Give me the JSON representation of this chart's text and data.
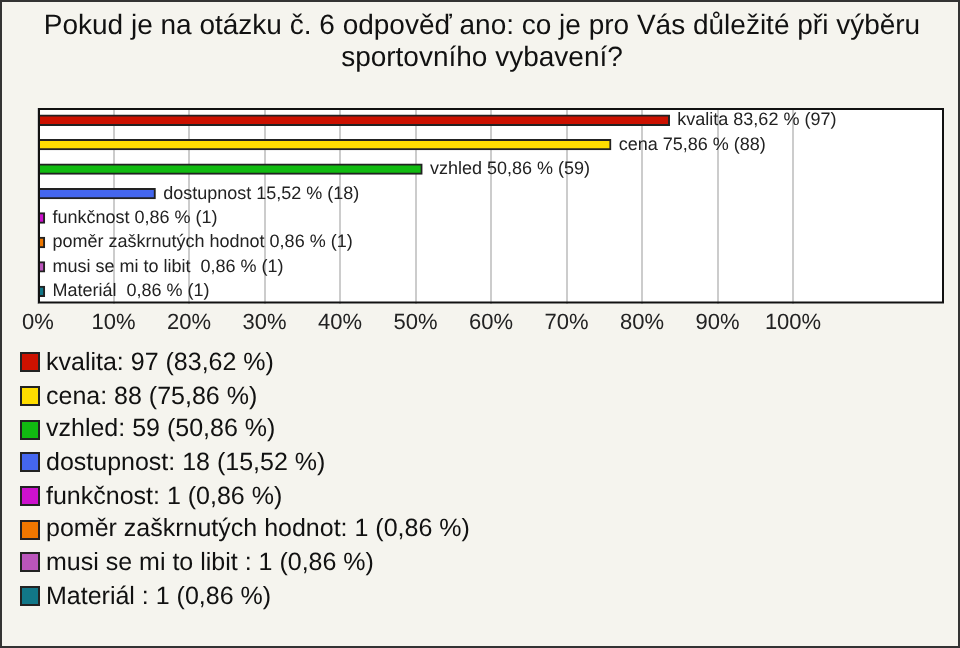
{
  "chart_data": {
    "type": "bar",
    "orientation": "horizontal",
    "title": "Pokud je na otázku č. 6 odpověď ano: co je pro Vás důležité při výběru sportovního vybavení?",
    "categories": [
      null,
      null,
      null,
      null,
      null,
      null,
      null,
      null
    ],
    "series": [
      {
        "name": "kvalita: 97 (83,62 %)",
        "color": "#cc1100",
        "values": [
          83.62,
          null,
          null,
          null,
          null,
          null,
          null,
          null
        ],
        "value_labels": [
          "kvalita 83,62 % (97)",
          null,
          null,
          null,
          null,
          null,
          null,
          null
        ]
      },
      {
        "name": "cena: 88 (75,86 %)",
        "color": "#ffdd00",
        "values": [
          null,
          75.86,
          null,
          null,
          null,
          null,
          null,
          null
        ],
        "value_labels": [
          null,
          "cena 75,86 % (88)",
          null,
          null,
          null,
          null,
          null,
          null
        ]
      },
      {
        "name": "vzhled: 59 (50,86 %)",
        "color": "#11bb11",
        "values": [
          null,
          null,
          50.86,
          null,
          null,
          null,
          null,
          null
        ],
        "value_labels": [
          null,
          null,
          "vzhled 50,86 % (59)",
          null,
          null,
          null,
          null,
          null
        ]
      },
      {
        "name": "dostupnost: 18 (15,52 %)",
        "color": "#4466ee",
        "values": [
          null,
          null,
          null,
          15.52,
          null,
          null,
          null,
          null
        ],
        "value_labels": [
          null,
          null,
          null,
          "dostupnost 15,52 % (18)",
          null,
          null,
          null,
          null
        ]
      },
      {
        "name": "funkčnost: 1 (0,86 %)",
        "color": "#cc11cc",
        "values": [
          null,
          null,
          null,
          null,
          0.86,
          null,
          null,
          null
        ],
        "value_labels": [
          null,
          null,
          null,
          null,
          "funkčnost 0,86 % (1)",
          null,
          null,
          null
        ]
      },
      {
        "name": "poměr zaškrnutých hodnot: 1 (0,86 %)",
        "color": "#ee7700",
        "values": [
          null,
          null,
          null,
          null,
          null,
          0.86,
          null,
          null
        ],
        "value_labels": [
          null,
          null,
          null,
          null,
          null,
          "poměr zaškrnutých hodnot 0,86 % (1)",
          null,
          null
        ]
      },
      {
        "name": "musi se mi to libit : 1 (0,86 %)",
        "color": "#bb55bb",
        "values": [
          null,
          null,
          null,
          null,
          null,
          null,
          0.86,
          null
        ],
        "value_labels": [
          null,
          null,
          null,
          null,
          null,
          null,
          "musi se mi to libit  0,86 % (1)",
          null
        ]
      },
      {
        "name": "Materiál : 1 (0,86 %)",
        "color": "#117788",
        "values": [
          null,
          null,
          null,
          null,
          null,
          null,
          null,
          0.86
        ],
        "value_labels": [
          null,
          null,
          null,
          null,
          null,
          null,
          null,
          "Materiál  0,86 % (1)"
        ]
      }
    ],
    "xlim": [
      0,
      120
    ],
    "xticks": [
      {
        "value": 0,
        "label": "0%"
      },
      {
        "value": 10,
        "label": "10%"
      },
      {
        "value": 20,
        "label": "20%"
      },
      {
        "value": 30,
        "label": "30%"
      },
      {
        "value": 40,
        "label": "40%"
      },
      {
        "value": 50,
        "label": "50%"
      },
      {
        "value": 60,
        "label": "60%"
      },
      {
        "value": 70,
        "label": "70%"
      },
      {
        "value": 80,
        "label": "80%"
      },
      {
        "value": 90,
        "label": "90%"
      },
      {
        "value": 100,
        "label": "100%"
      }
    ],
    "grid": "x",
    "legend": "bottom"
  }
}
